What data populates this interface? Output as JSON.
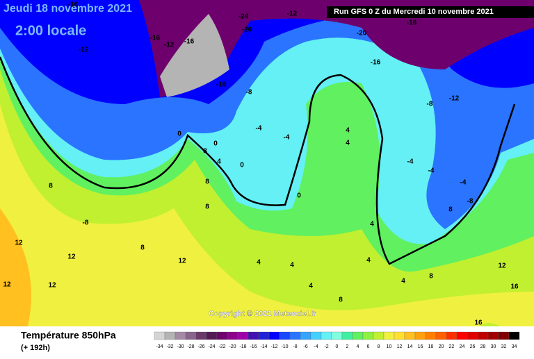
{
  "header": {
    "date": "Jeudi 18 novembre 2021",
    "time": "2:00 locale",
    "run": "Run GFS 0 Z du Mercredi 10 novembre 2021",
    "copyright": "Copyright © 2021 Meteociel.fr"
  },
  "footer": {
    "title": "Température 850hPa",
    "forecast": "(+ 192h)"
  },
  "map_labels": [
    -16,
    -12,
    -12,
    -16,
    -16,
    -24,
    -20,
    -12,
    -20,
    -16,
    -16,
    -12,
    -8,
    -8,
    -16,
    0,
    0,
    -4,
    -4,
    8,
    4,
    0,
    8,
    8,
    -8,
    8,
    12,
    12,
    12,
    12,
    8,
    12,
    4,
    4,
    4,
    8,
    4,
    4,
    8,
    8,
    -8,
    -4,
    12,
    16,
    16,
    -4,
    4,
    4,
    0,
    4,
    -4
  ],
  "legend": [
    {
      "value": -34,
      "color": "#d4d4d4"
    },
    {
      "value": -32,
      "color": "#b4b4b4"
    },
    {
      "value": -30,
      "color": "#a48aa4"
    },
    {
      "value": -28,
      "color": "#8a648a"
    },
    {
      "value": -26,
      "color": "#6a3a6a"
    },
    {
      "value": -24,
      "color": "#541a54"
    },
    {
      "value": -22,
      "color": "#6e006e"
    },
    {
      "value": -20,
      "color": "#8c008c"
    },
    {
      "value": -18,
      "color": "#a000a8"
    },
    {
      "value": -16,
      "color": "#4010b0"
    },
    {
      "value": -14,
      "color": "#2020d8"
    },
    {
      "value": -12,
      "color": "#0000ff"
    },
    {
      "value": -10,
      "color": "#1848ff"
    },
    {
      "value": -8,
      "color": "#2a74ff"
    },
    {
      "value": -6,
      "color": "#34a4ff"
    },
    {
      "value": -4,
      "color": "#44d0ff"
    },
    {
      "value": -2,
      "color": "#64f0f4"
    },
    {
      "value": 0,
      "color": "#80ffe0"
    },
    {
      "value": 2,
      "color": "#40f0a0"
    },
    {
      "value": 4,
      "color": "#60f060"
    },
    {
      "value": 6,
      "color": "#90f040"
    },
    {
      "value": 8,
      "color": "#c0f030"
    },
    {
      "value": 10,
      "color": "#f0f040"
    },
    {
      "value": 12,
      "color": "#ffe030"
    },
    {
      "value": 14,
      "color": "#ffc020"
    },
    {
      "value": 16,
      "color": "#ffa010"
    },
    {
      "value": 18,
      "color": "#ff8000"
    },
    {
      "value": 20,
      "color": "#ff6000"
    },
    {
      "value": 22,
      "color": "#ff3000"
    },
    {
      "value": 24,
      "color": "#ff0000"
    },
    {
      "value": 26,
      "color": "#e00000"
    },
    {
      "value": 28,
      "color": "#c00000"
    },
    {
      "value": 30,
      "color": "#a00000"
    },
    {
      "value": 32,
      "color": "#800000"
    },
    {
      "value": 34,
      "color": "#000000"
    }
  ]
}
